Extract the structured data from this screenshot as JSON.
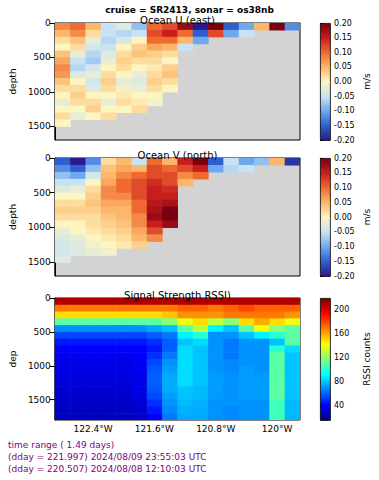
{
  "title": "cruise = SR2413, sonar = os38nb",
  "footer": [
    "time range ( 1.49 days)",
    "(dday = 221.997) 2024/08/09 23:55:03 UTC",
    "(dday = 220.507) 2024/08/08 12:10:03 UTC"
  ],
  "chart_data": [
    {
      "type": "heatmap",
      "title": "Ocean U (east)",
      "ylabel": "depth",
      "grid": false,
      "tick_labels": "y",
      "x": [
        -122.8,
        -122.6,
        -122.4,
        -122.2,
        -122.0,
        -121.8,
        -121.6,
        -121.4,
        -121.2,
        -121.0,
        -120.8,
        -120.6,
        -120.4,
        -120.2,
        -120.0,
        -119.8
      ],
      "y": [
        50,
        150,
        250,
        350,
        450,
        550,
        650,
        750,
        850,
        950,
        1050,
        1150,
        1250,
        1350,
        1450
      ],
      "values": [
        [
          0.08,
          0.1,
          0.05,
          -0.05,
          -0.03,
          -0.08,
          0.1,
          0.12,
          0.18,
          -0.2,
          0.2,
          -0.15,
          -0.1,
          0.05,
          0.2,
          -0.12
        ],
        [
          0.05,
          0.08,
          0.02,
          -0.05,
          -0.06,
          -0.05,
          0.12,
          0.15,
          0.1,
          -0.15,
          0.12,
          -0.1,
          -0.05,
          null,
          null,
          null
        ],
        [
          0.02,
          0.04,
          -0.02,
          -0.06,
          -0.04,
          0,
          0.1,
          0.1,
          0.05,
          -0.1,
          null,
          null,
          null,
          null,
          null,
          null
        ],
        [
          0,
          0.02,
          -0.04,
          -0.05,
          0,
          0.03,
          0.06,
          0.05,
          -0.05,
          null,
          null,
          null,
          null,
          null,
          null,
          null
        ],
        [
          0.04,
          -0.02,
          -0.06,
          -0.03,
          0.02,
          0.04,
          0.03,
          0.02,
          null,
          null,
          null,
          null,
          null,
          null,
          null,
          null
        ],
        [
          0.06,
          -0.05,
          -0.07,
          -0.02,
          0.03,
          0.02,
          0.02,
          0,
          null,
          null,
          null,
          null,
          null,
          null,
          null,
          null
        ],
        [
          0.08,
          -0.06,
          -0.04,
          0,
          0.02,
          0,
          0.01,
          0.03,
          null,
          null,
          null,
          null,
          null,
          null,
          null,
          null
        ],
        [
          0.07,
          -0.03,
          -0.02,
          0.02,
          0,
          -0.02,
          0.02,
          0.04,
          null,
          null,
          null,
          null,
          null,
          null,
          null,
          null
        ],
        [
          0.04,
          0,
          -0.04,
          0.03,
          -0.02,
          -0.03,
          0.03,
          0.02,
          null,
          null,
          null,
          null,
          null,
          null,
          null,
          null
        ],
        [
          0.02,
          0.02,
          -0.03,
          0.02,
          -0.01,
          -0.02,
          0.02,
          0,
          null,
          null,
          null,
          null,
          null,
          null,
          null,
          null
        ],
        [
          0,
          0.03,
          0,
          0,
          0.01,
          0,
          0,
          null,
          null,
          null,
          null,
          null,
          null,
          null,
          null,
          null
        ],
        [
          -0.02,
          0.02,
          0.02,
          -0.02,
          0.02,
          0.01,
          -0.01,
          null,
          null,
          null,
          null,
          null,
          null,
          null,
          null,
          null
        ],
        [
          0,
          0,
          0.03,
          0,
          0,
          0.02,
          null,
          null,
          null,
          null,
          null,
          null,
          null,
          null,
          null,
          null
        ],
        [
          0.02,
          -0.02,
          0,
          0.02,
          null,
          null,
          null,
          null,
          null,
          null,
          null,
          null,
          null,
          null,
          null,
          null
        ],
        [
          0,
          null,
          null,
          null,
          null,
          null,
          null,
          null,
          null,
          null,
          null,
          null,
          null,
          null,
          null,
          null
        ]
      ],
      "xlim": [
        -122.9,
        -119.7
      ],
      "xticks": [
        {
          "value": -122.4,
          "label": "122.4°W"
        },
        {
          "value": -121.6,
          "label": "121.6°W"
        },
        {
          "value": -120.8,
          "label": "120.8°W"
        },
        {
          "value": -120,
          "label": "120°W"
        }
      ],
      "ylim": [
        0,
        1700
      ],
      "yticks": [
        0,
        500,
        1000,
        1500
      ],
      "colorbar": {
        "label": "m/s",
        "range": [
          -0.2,
          0.2
        ],
        "ticks": [
          {
            "value": -0.2,
            "label": "-0.20"
          },
          {
            "value": -0.15,
            "label": "-0.15"
          },
          {
            "value": -0.1,
            "label": "-0.10"
          },
          {
            "value": -0.05,
            "label": "-0.05"
          },
          {
            "value": 0,
            "label": "0.00"
          },
          {
            "value": 0.05,
            "label": "0.05"
          },
          {
            "value": 0.1,
            "label": "0.10"
          },
          {
            "value": 0.15,
            "label": "0.15"
          },
          {
            "value": 0.2,
            "label": "0.20"
          }
        ]
      }
    },
    {
      "type": "heatmap",
      "title": "Ocean V (north)",
      "ylabel": "depth",
      "grid": false,
      "tick_labels": "y",
      "x": [
        -122.8,
        -122.6,
        -122.4,
        -122.2,
        -122.0,
        -121.8,
        -121.6,
        -121.4,
        -121.2,
        -121.0,
        -120.8,
        -120.6,
        -120.4,
        -120.2,
        -120.0,
        -119.8
      ],
      "y": [
        50,
        150,
        250,
        350,
        450,
        550,
        650,
        750,
        850,
        950,
        1050,
        1150,
        1250,
        1350,
        1450
      ],
      "values": [
        [
          -0.15,
          -0.2,
          -0.12,
          0.02,
          0.05,
          -0.05,
          0.1,
          0.05,
          0.15,
          0.2,
          -0.15,
          -0.05,
          -0.1,
          -0.08,
          0.05,
          -0.18
        ],
        [
          -0.12,
          -0.15,
          -0.08,
          0.04,
          0.06,
          0.05,
          0.12,
          0.1,
          0.12,
          0.15,
          -0.1,
          -0.06,
          -0.05,
          null,
          null,
          null
        ],
        [
          -0.08,
          -0.1,
          -0.04,
          0.05,
          0.08,
          0.1,
          0.12,
          0.12,
          0.08,
          0.1,
          null,
          null,
          null,
          null,
          null,
          null
        ],
        [
          -0.05,
          -0.05,
          0,
          0.06,
          0.1,
          0.12,
          0.14,
          0.12,
          0.05,
          null,
          null,
          null,
          null,
          null,
          null,
          null
        ],
        [
          -0.03,
          -0.02,
          0.02,
          0.08,
          0.1,
          0.12,
          0.15,
          0.14,
          null,
          null,
          null,
          null,
          null,
          null,
          null,
          null
        ],
        [
          0,
          0,
          0.03,
          0.08,
          0.08,
          0.12,
          0.15,
          0.15,
          null,
          null,
          null,
          null,
          null,
          null,
          null,
          null
        ],
        [
          0.02,
          0.02,
          0.04,
          0.06,
          0.06,
          0.1,
          0.16,
          0.17,
          null,
          null,
          null,
          null,
          null,
          null,
          null,
          null
        ],
        [
          0.03,
          0.03,
          0.03,
          0.05,
          0.05,
          0.1,
          0.17,
          0.2,
          null,
          null,
          null,
          null,
          null,
          null,
          null,
          null
        ],
        [
          0.02,
          0.02,
          0.02,
          0.04,
          0.05,
          0.08,
          0.18,
          0.2,
          null,
          null,
          null,
          null,
          null,
          null,
          null,
          null
        ],
        [
          0,
          0,
          0.02,
          0.03,
          0.04,
          0.08,
          0.15,
          0.18,
          null,
          null,
          null,
          null,
          null,
          null,
          null,
          null
        ],
        [
          -0.02,
          0,
          0.01,
          0.02,
          0.03,
          0.06,
          0.12,
          null,
          null,
          null,
          null,
          null,
          null,
          null,
          null,
          null
        ],
        [
          -0.03,
          -0.02,
          0,
          0.01,
          0.02,
          0.05,
          0.08,
          null,
          null,
          null,
          null,
          null,
          null,
          null,
          null,
          null
        ],
        [
          -0.04,
          -0.03,
          -0.01,
          0,
          0.01,
          0.03,
          null,
          null,
          null,
          null,
          null,
          null,
          null,
          null,
          null,
          null
        ],
        [
          -0.04,
          -0.03,
          -0.02,
          -0.01,
          null,
          null,
          null,
          null,
          null,
          null,
          null,
          null,
          null,
          null,
          null,
          null
        ],
        [
          -0.03,
          null,
          null,
          null,
          null,
          null,
          null,
          null,
          null,
          null,
          null,
          null,
          null,
          null,
          null,
          null
        ]
      ],
      "xlim": [
        -122.9,
        -119.7
      ],
      "xticks": [
        {
          "value": -122.4,
          "label": "122.4°W"
        },
        {
          "value": -121.6,
          "label": "121.6°W"
        },
        {
          "value": -120.8,
          "label": "120.8°W"
        },
        {
          "value": -120,
          "label": "120°W"
        }
      ],
      "ylim": [
        0,
        1700
      ],
      "yticks": [
        0,
        500,
        1000,
        1500
      ],
      "colorbar": {
        "label": "m/s",
        "range": [
          -0.2,
          0.2
        ],
        "ticks": [
          {
            "value": -0.2,
            "label": "-0.20"
          },
          {
            "value": -0.15,
            "label": "-0.15"
          },
          {
            "value": -0.1,
            "label": "-0.10"
          },
          {
            "value": -0.05,
            "label": "-0.05"
          },
          {
            "value": 0,
            "label": "0.00"
          },
          {
            "value": 0.05,
            "label": "0.05"
          },
          {
            "value": 0.1,
            "label": "0.10"
          },
          {
            "value": 0.15,
            "label": "0.15"
          },
          {
            "value": 0.2,
            "label": "0.20"
          }
        ]
      }
    },
    {
      "type": "heatmap",
      "title": "Signal Strength RSSI)",
      "ylabel": "dep",
      "grid": false,
      "x": [
        -122.8,
        -122.6,
        -122.4,
        -122.2,
        -122.0,
        -121.8,
        -121.6,
        -121.4,
        -121.2,
        -121.0,
        -120.8,
        -120.6,
        -120.4,
        -120.2,
        -120.0,
        -119.8
      ],
      "y": [
        50,
        150,
        250,
        350,
        450,
        550,
        650,
        750,
        850,
        950,
        1050,
        1150,
        1250,
        1350,
        1450,
        1550,
        1650,
        1750
      ],
      "values": [
        [
          210,
          210,
          210,
          210,
          210,
          210,
          210,
          210,
          210,
          210,
          210,
          210,
          210,
          210,
          210,
          210
        ],
        [
          170,
          170,
          170,
          170,
          170,
          170,
          170,
          170,
          175,
          175,
          170,
          175,
          180,
          175,
          175,
          175
        ],
        [
          150,
          150,
          150,
          150,
          150,
          150,
          150,
          155,
          165,
          165,
          165,
          170,
          170,
          170,
          170,
          165
        ],
        [
          110,
          110,
          110,
          110,
          110,
          110,
          110,
          120,
          140,
          150,
          130,
          120,
          150,
          160,
          150,
          140
        ],
        [
          70,
          70,
          70,
          70,
          70,
          70,
          75,
          80,
          110,
          130,
          90,
          80,
          110,
          140,
          120,
          110
        ],
        [
          55,
          55,
          55,
          55,
          55,
          55,
          60,
          65,
          90,
          100,
          70,
          70,
          80,
          90,
          100,
          110
        ],
        [
          45,
          45,
          45,
          45,
          45,
          45,
          50,
          60,
          80,
          85,
          70,
          65,
          70,
          70,
          80,
          110
        ],
        [
          40,
          40,
          40,
          40,
          40,
          40,
          45,
          60,
          85,
          80,
          70,
          65,
          70,
          70,
          100,
          85
        ],
        [
          38,
          38,
          38,
          38,
          38,
          40,
          50,
          65,
          85,
          80,
          70,
          65,
          70,
          70,
          110,
          80
        ],
        [
          36,
          36,
          36,
          36,
          36,
          38,
          55,
          70,
          85,
          80,
          70,
          68,
          70,
          70,
          110,
          80
        ],
        [
          35,
          35,
          35,
          35,
          35,
          38,
          58,
          72,
          85,
          80,
          70,
          68,
          72,
          70,
          110,
          80
        ],
        [
          34,
          34,
          34,
          34,
          34,
          36,
          60,
          75,
          85,
          80,
          72,
          70,
          72,
          72,
          110,
          80
        ],
        [
          33,
          33,
          33,
          33,
          33,
          36,
          60,
          75,
          85,
          80,
          72,
          70,
          72,
          72,
          110,
          80
        ],
        [
          32,
          32,
          32,
          32,
          32,
          35,
          58,
          75,
          80,
          78,
          72,
          70,
          72,
          72,
          110,
          80
        ],
        [
          30,
          30,
          30,
          30,
          30,
          34,
          55,
          72,
          80,
          78,
          72,
          70,
          72,
          72,
          110,
          80
        ],
        [
          30,
          30,
          30,
          30,
          30,
          32,
          50,
          70,
          78,
          76,
          70,
          70,
          70,
          70,
          105,
          78
        ],
        [
          28,
          28,
          28,
          28,
          28,
          30,
          45,
          68,
          76,
          75,
          70,
          68,
          70,
          70,
          105,
          78
        ],
        [
          28,
          28,
          28,
          28,
          28,
          30,
          40,
          65,
          75,
          75,
          70,
          68,
          70,
          70,
          105,
          78
        ]
      ],
      "xlim": [
        -122.9,
        -119.7
      ],
      "xticks": [
        {
          "value": -122.4,
          "label": "122.4°W"
        },
        {
          "value": -121.6,
          "label": "121.6°W"
        },
        {
          "value": -120.8,
          "label": "120.8°W"
        },
        {
          "value": -120,
          "label": "120°W"
        }
      ],
      "ylim": [
        0,
        1800
      ],
      "yticks": [
        0,
        500,
        1000,
        1500
      ],
      "colorbar": {
        "label": "RSSI counts",
        "range": [
          15,
          220
        ],
        "ticks": [
          40,
          80,
          120,
          160,
          200
        ]
      }
    }
  ]
}
